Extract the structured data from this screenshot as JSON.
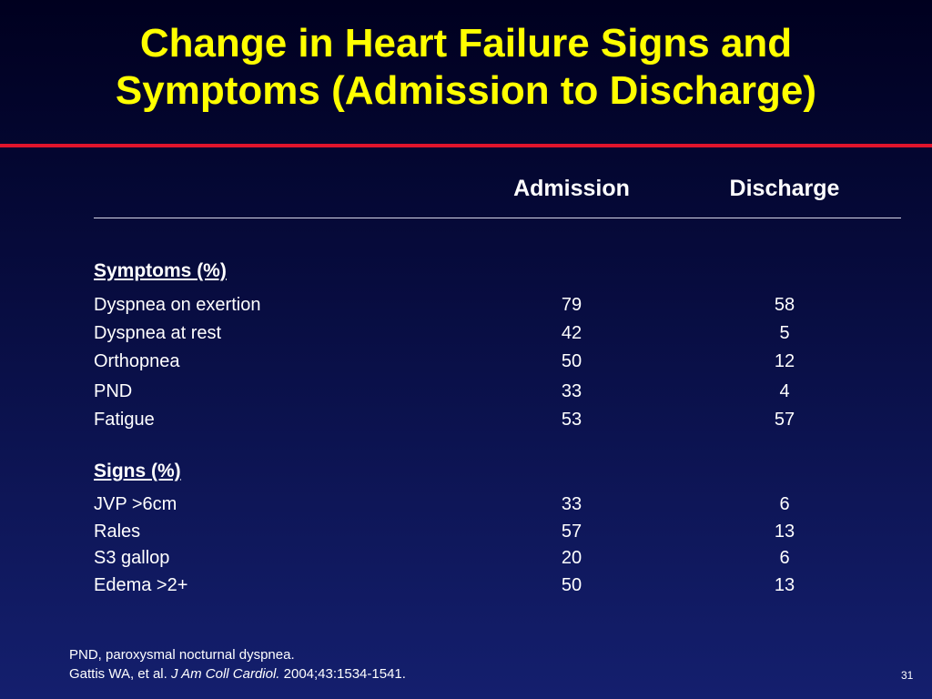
{
  "title": {
    "line1": "Change in Heart Failure Signs and",
    "line2": "Symptoms (Admission to Discharge)"
  },
  "columns": {
    "admission": "Admission",
    "discharge": "Discharge"
  },
  "symptoms": {
    "heading": "Symptoms (%)",
    "rows": [
      {
        "label": "Dyspnea on exertion",
        "admission": "79",
        "discharge": "58"
      },
      {
        "label": "Dyspnea at rest",
        "admission": "42",
        "discharge": "5"
      },
      {
        "label": "Orthopnea",
        "admission": "50",
        "discharge": "12"
      },
      {
        "label": "PND",
        "admission": "33",
        "discharge": "4"
      },
      {
        "label": "Fatigue",
        "admission": "53",
        "discharge": "57"
      }
    ]
  },
  "signs": {
    "heading": "Signs (%)",
    "rows": [
      {
        "label": "JVP >6cm",
        "admission": "33",
        "discharge": "6"
      },
      {
        "label": "Rales",
        "admission": "57",
        "discharge": "13"
      },
      {
        "label": "S3 gallop",
        "admission": "20",
        "discharge": "6"
      },
      {
        "label": "Edema >2+",
        "admission": "50",
        "discharge": "13"
      }
    ]
  },
  "footnote": {
    "abbrev": "PND, paroxysmal nocturnal dyspnea.",
    "citation_authors": "Gattis WA, et al. ",
    "citation_journal": "J Am Coll Cardiol.",
    "citation_details": " 2004;43:1534-1541."
  },
  "slide_number": "31",
  "colors": {
    "title": "#ffff00",
    "accent_rule": "#e0142c",
    "background_top": "#00001f",
    "background_bottom": "#141f6e"
  }
}
